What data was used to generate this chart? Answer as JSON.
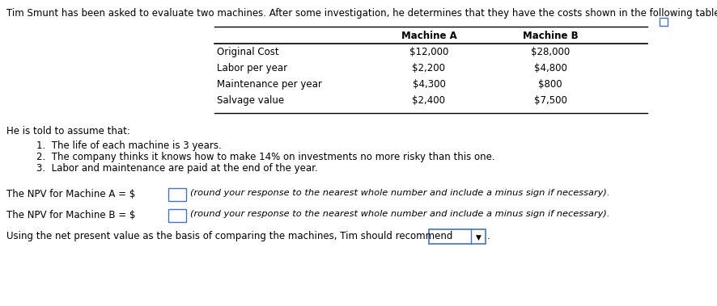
{
  "title": "Tim Smunt has been asked to evaluate two machines. After some investigation, he determines that they have the costs shown in the following table:",
  "table_headers": [
    "",
    "Machine A",
    "Machine B"
  ],
  "table_rows": [
    [
      "Original Cost",
      "$12,000",
      "$28,000"
    ],
    [
      "Labor per year",
      "$2,200",
      "$4,800"
    ],
    [
      "Maintenance per year",
      "$4,300",
      "$800"
    ],
    [
      "Salvage value",
      "$2,400",
      "$7,500"
    ]
  ],
  "assumption_header": "He is told to assume that:",
  "assumptions": [
    "1.  The life of each machine is 3 years.",
    "2.  The company thinks it knows how to make 14% on investments no more risky than this one.",
    "3.  Labor and maintenance are paid at the end of the year."
  ],
  "npv_a_label": "The NPV for Machine A = $",
  "npv_b_label": "The NPV for Machine B = $",
  "npv_suffix": "(round your response to the nearest whole number and include a minus sign if necessary).",
  "recommend_label": "Using the net present value as the basis of comparing the machines, Tim should recommend",
  "bg_color": "#ffffff",
  "text_color": "#000000",
  "box_color": "#4472C4",
  "title_fontsize": 8.5,
  "body_fontsize": 8.5,
  "italic_fontsize": 8.2
}
